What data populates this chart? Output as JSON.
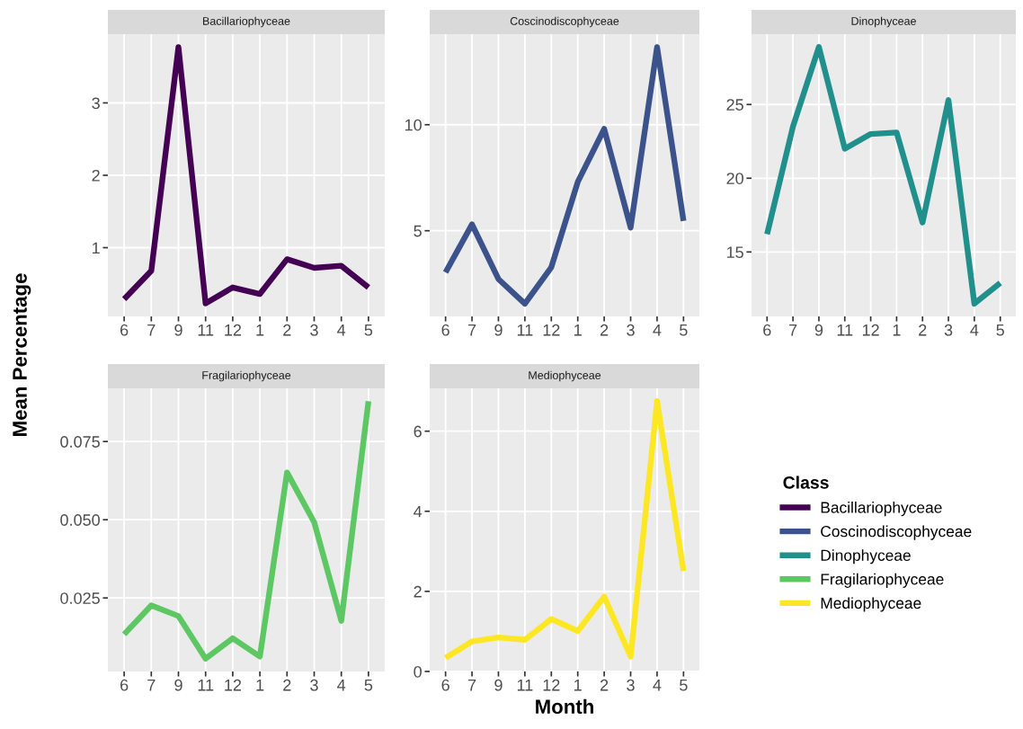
{
  "chart_data": [
    {
      "type": "line",
      "title": "Bacillariophyceae",
      "ylabel": "Mean Percentage",
      "legend": "right",
      "legend_title": "Class",
      "grid": true,
      "categories": [
        "6",
        "7",
        "9",
        "11",
        "12",
        "1",
        "2",
        "3",
        "4",
        "5"
      ],
      "ylim": [
        0.05,
        3.95
      ],
      "yticks": [
        1,
        2,
        3
      ],
      "series": [
        {
          "name": "Bacillariophyceae",
          "color": "#440154",
          "values": [
            0.29,
            0.68,
            3.77,
            0.23,
            0.45,
            0.36,
            0.84,
            0.72,
            0.75,
            0.45
          ]
        }
      ]
    },
    {
      "type": "line",
      "title": "Coscinodiscophyceae",
      "grid": true,
      "categories": [
        "6",
        "7",
        "9",
        "11",
        "12",
        "1",
        "2",
        "3",
        "4",
        "5"
      ],
      "ylim": [
        0.96,
        14.27
      ],
      "yticks": [
        5,
        10
      ],
      "series": [
        {
          "name": "Coscinodiscophyceae",
          "color": "#3b528b",
          "values": [
            3.04,
            5.3,
            2.72,
            1.56,
            3.28,
            7.3,
            9.8,
            5.15,
            13.66,
            5.46
          ]
        }
      ]
    },
    {
      "type": "line",
      "title": "Dinophyceae",
      "grid": true,
      "categories": [
        "6",
        "7",
        "9",
        "11",
        "12",
        "1",
        "2",
        "3",
        "4",
        "5"
      ],
      "ylim": [
        10.63,
        29.77
      ],
      "yticks": [
        15,
        20,
        25
      ],
      "series": [
        {
          "name": "Dinophyceae",
          "color": "#21908c",
          "values": [
            16.2,
            23.5,
            28.9,
            22.0,
            23.0,
            23.1,
            17.0,
            25.3,
            11.5,
            12.9
          ]
        }
      ]
    },
    {
      "type": "line",
      "title": "Fragilariophyceae",
      "grid": true,
      "categories": [
        "6",
        "7",
        "9",
        "11",
        "12",
        "1",
        "2",
        "3",
        "4",
        "5"
      ],
      "ylim": [
        0.0015,
        0.092
      ],
      "yticks": [
        {
          "value": 0.025,
          "label": "0.025"
        },
        {
          "value": 0.05,
          "label": "0.050"
        },
        {
          "value": 0.075,
          "label": "0.075"
        }
      ],
      "series": [
        {
          "name": "Fragilariophyceae",
          "color": "#5dc863",
          "values": [
            0.0134,
            0.0226,
            0.0192,
            0.0056,
            0.0121,
            0.0063,
            0.0651,
            0.0492,
            0.0177,
            0.0879
          ]
        }
      ]
    },
    {
      "type": "line",
      "title": "Mediophyceae",
      "xlabel": "Month",
      "grid": true,
      "categories": [
        "6",
        "7",
        "9",
        "11",
        "12",
        "1",
        "2",
        "3",
        "4",
        "5"
      ],
      "ylim": [
        0,
        7.07
      ],
      "yticks": [
        0,
        2,
        4,
        6
      ],
      "series": [
        {
          "name": "Mediophyceae",
          "color": "#fde725",
          "values": [
            0.34,
            0.75,
            0.85,
            0.79,
            1.31,
            1.01,
            1.87,
            0.37,
            6.75,
            2.51
          ]
        }
      ]
    }
  ]
}
